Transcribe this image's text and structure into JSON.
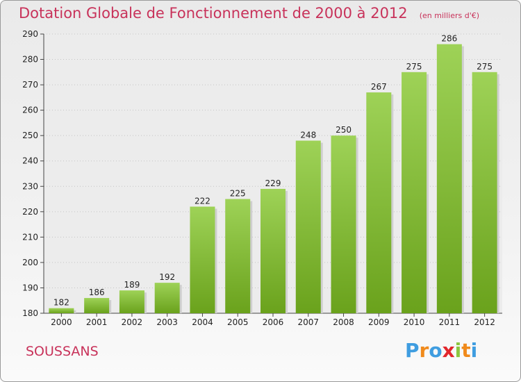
{
  "header": {
    "title": "Dotation Globale de Fonctionnement de 2000 à 2012",
    "unit": "(en milliers d'€)"
  },
  "footer": {
    "place": "SOUSSANS",
    "logo": "Proxiti"
  },
  "colors": {
    "title": "#c8325a",
    "bar_light": "#9ed257",
    "bar_dark": "#6aa21c",
    "logo_letters": [
      "#3f9de0",
      "#f08a1c",
      "#3f9de0",
      "#e2262c",
      "#8cc63f",
      "#f08a1c",
      "#3f9de0"
    ]
  },
  "chart_data": {
    "type": "bar",
    "title": "Dotation Globale de Fonctionnement de 2000 à 2012",
    "categories": [
      "2000",
      "2001",
      "2002",
      "2003",
      "2004",
      "2005",
      "2006",
      "2007",
      "2008",
      "2009",
      "2010",
      "2011",
      "2012"
    ],
    "values": [
      182,
      186,
      189,
      192,
      222,
      225,
      229,
      248,
      250,
      267,
      275,
      286,
      275
    ],
    "yticks": [
      180,
      190,
      200,
      210,
      220,
      230,
      240,
      250,
      260,
      270,
      280,
      290
    ],
    "ylim": [
      180,
      290
    ],
    "grid": true,
    "xlabel": "",
    "ylabel": ""
  }
}
